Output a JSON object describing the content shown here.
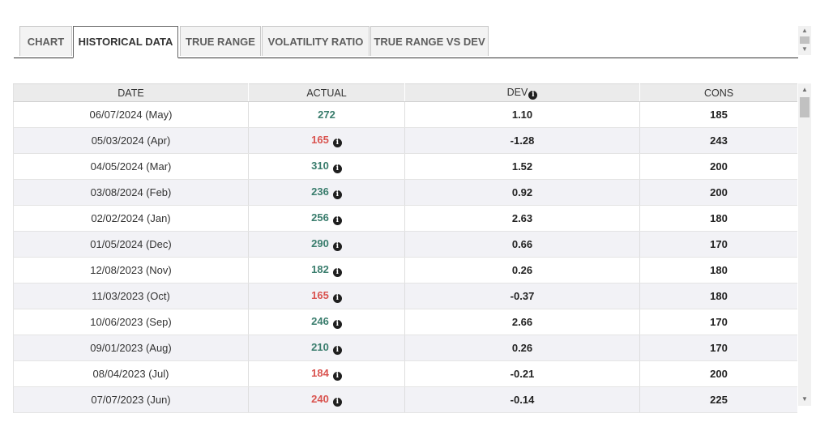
{
  "tabs": [
    {
      "label": "CHART",
      "active": false
    },
    {
      "label": "HISTORICAL DATA",
      "active": true
    },
    {
      "label": "TRUE RANGE",
      "active": false
    },
    {
      "label": "VOLATILITY RATIO",
      "active": false
    },
    {
      "label": "TRUE RANGE VS DEV",
      "active": false
    }
  ],
  "colors": {
    "positive": "#3a7d6d",
    "negative": "#d9534f"
  },
  "table": {
    "headers": {
      "date": "DATE",
      "actual": "ACTUAL",
      "dev": "DEV",
      "cons": "CONS"
    },
    "header_icon": "info-circle-icon",
    "rows": [
      {
        "date": "06/07/2024 (May)",
        "actual": "272",
        "trend": "positive",
        "info": false,
        "dev": "1.10",
        "cons": "185"
      },
      {
        "date": "05/03/2024 (Apr)",
        "actual": "165",
        "trend": "negative",
        "info": true,
        "dev": "-1.28",
        "cons": "243"
      },
      {
        "date": "04/05/2024 (Mar)",
        "actual": "310",
        "trend": "positive",
        "info": true,
        "dev": "1.52",
        "cons": "200"
      },
      {
        "date": "03/08/2024 (Feb)",
        "actual": "236",
        "trend": "positive",
        "info": true,
        "dev": "0.92",
        "cons": "200"
      },
      {
        "date": "02/02/2024 (Jan)",
        "actual": "256",
        "trend": "positive",
        "info": true,
        "dev": "2.63",
        "cons": "180"
      },
      {
        "date": "01/05/2024 (Dec)",
        "actual": "290",
        "trend": "positive",
        "info": true,
        "dev": "0.66",
        "cons": "170"
      },
      {
        "date": "12/08/2023 (Nov)",
        "actual": "182",
        "trend": "positive",
        "info": true,
        "dev": "0.26",
        "cons": "180"
      },
      {
        "date": "11/03/2023 (Oct)",
        "actual": "165",
        "trend": "negative",
        "info": true,
        "dev": "-0.37",
        "cons": "180"
      },
      {
        "date": "10/06/2023 (Sep)",
        "actual": "246",
        "trend": "positive",
        "info": true,
        "dev": "2.66",
        "cons": "170"
      },
      {
        "date": "09/01/2023 (Aug)",
        "actual": "210",
        "trend": "positive",
        "info": true,
        "dev": "0.26",
        "cons": "170"
      },
      {
        "date": "08/04/2023 (Jul)",
        "actual": "184",
        "trend": "negative",
        "info": true,
        "dev": "-0.21",
        "cons": "200"
      },
      {
        "date": "07/07/2023 (Jun)",
        "actual": "240",
        "trend": "negative",
        "info": true,
        "dev": "-0.14",
        "cons": "225"
      }
    ]
  }
}
